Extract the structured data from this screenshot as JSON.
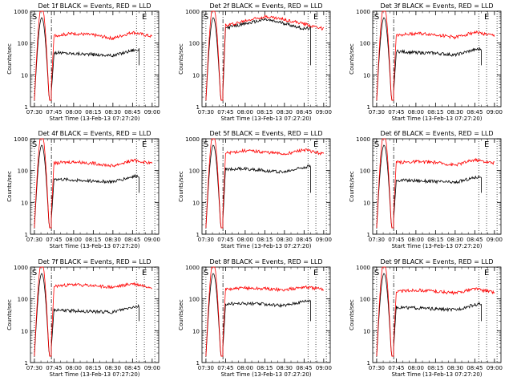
{
  "chart_data": [
    {
      "type": "line",
      "title": "Det 1f BLACK = Events, RED = LLD",
      "xlabel": "Start Time (13-Feb-13 07:27:20)",
      "ylabel": "Counts/sec",
      "yscale": "log",
      "ylim": [
        1,
        1000
      ],
      "xlim": [
        "07:27",
        "09:05"
      ],
      "x_ticks": [
        "07:30",
        "07:45",
        "08:00",
        "08:15",
        "08:30",
        "08:45",
        "09:00"
      ],
      "y_ticks": [
        "1",
        "10",
        "100",
        "1000"
      ],
      "markers": [
        {
          "label": "S",
          "time": "07:30"
        },
        {
          "label": "E",
          "time": "08:54"
        }
      ],
      "vlines": [
        {
          "time": "07:43",
          "style": "dash-dot"
        },
        {
          "time": "08:48",
          "style": "dotted"
        },
        {
          "time": "09:02",
          "style": "dotted"
        }
      ],
      "series": [
        {
          "color": "#000000",
          "values": [
            {
              "x": "07:45",
              "y": 50
            },
            {
              "x": "08:00",
              "y": 47
            },
            {
              "x": "08:15",
              "y": 44
            },
            {
              "x": "08:30",
              "y": 40
            },
            {
              "x": "08:45",
              "y": 60
            },
            {
              "x": "08:50",
              "y": 62
            }
          ]
        },
        {
          "color": "#ff0000",
          "values": [
            {
              "x": "07:45",
              "y": 170
            },
            {
              "x": "08:00",
              "y": 200
            },
            {
              "x": "08:15",
              "y": 180
            },
            {
              "x": "08:30",
              "y": 140
            },
            {
              "x": "08:45",
              "y": 220
            },
            {
              "x": "09:00",
              "y": 160
            }
          ]
        }
      ]
    },
    {
      "type": "line",
      "title": "Det 2f BLACK = Events, RED = LLD",
      "xlabel": "Start Time (13-Feb-13 07:27:20)",
      "ylabel": "Counts/sec",
      "yscale": "log",
      "ylim": [
        1,
        1000
      ],
      "xlim": [
        "07:27",
        "09:05"
      ],
      "x_ticks": [
        "07:30",
        "07:45",
        "08:00",
        "08:15",
        "08:30",
        "08:45",
        "09:00"
      ],
      "y_ticks": [
        "1",
        "10",
        "100",
        "1000"
      ],
      "markers": [
        {
          "label": "S",
          "time": "07:30"
        },
        {
          "label": "E",
          "time": "08:54"
        }
      ],
      "vlines": [
        {
          "time": "07:43",
          "style": "dash-dot"
        },
        {
          "time": "08:48",
          "style": "dotted"
        },
        {
          "time": "09:02",
          "style": "dotted"
        }
      ],
      "series": [
        {
          "color": "#000000",
          "values": [
            {
              "x": "07:45",
              "y": 300
            },
            {
              "x": "08:00",
              "y": 400
            },
            {
              "x": "08:15",
              "y": 550
            },
            {
              "x": "08:30",
              "y": 420
            },
            {
              "x": "08:45",
              "y": 280
            },
            {
              "x": "08:50",
              "y": 300
            }
          ]
        },
        {
          "color": "#ff0000",
          "values": [
            {
              "x": "07:45",
              "y": 350
            },
            {
              "x": "08:00",
              "y": 500
            },
            {
              "x": "08:15",
              "y": 700
            },
            {
              "x": "08:30",
              "y": 550
            },
            {
              "x": "08:45",
              "y": 400
            },
            {
              "x": "09:00",
              "y": 280
            }
          ]
        }
      ]
    },
    {
      "type": "line",
      "title": "Det 3f BLACK = Events, RED = LLD",
      "xlabel": "Start Time (13-Feb-13 07:27:20)",
      "ylabel": "Counts/sec",
      "yscale": "log",
      "ylim": [
        1,
        1000
      ],
      "xlim": [
        "07:27",
        "09:05"
      ],
      "x_ticks": [
        "07:30",
        "07:45",
        "08:00",
        "08:15",
        "08:30",
        "08:45",
        "09:00"
      ],
      "y_ticks": [
        "1",
        "10",
        "100",
        "1000"
      ],
      "markers": [
        {
          "label": "S",
          "time": "07:30"
        },
        {
          "label": "E",
          "time": "08:54"
        }
      ],
      "vlines": [
        {
          "time": "07:43",
          "style": "dash-dot"
        },
        {
          "time": "08:48",
          "style": "dotted"
        },
        {
          "time": "09:02",
          "style": "dotted"
        }
      ],
      "series": [
        {
          "color": "#000000",
          "values": [
            {
              "x": "07:45",
              "y": 55
            },
            {
              "x": "08:00",
              "y": 50
            },
            {
              "x": "08:15",
              "y": 48
            },
            {
              "x": "08:30",
              "y": 42
            },
            {
              "x": "08:45",
              "y": 62
            },
            {
              "x": "08:50",
              "y": 65
            }
          ]
        },
        {
          "color": "#ff0000",
          "values": [
            {
              "x": "07:45",
              "y": 180
            },
            {
              "x": "08:00",
              "y": 200
            },
            {
              "x": "08:15",
              "y": 185
            },
            {
              "x": "08:30",
              "y": 150
            },
            {
              "x": "08:45",
              "y": 220
            },
            {
              "x": "09:00",
              "y": 170
            }
          ]
        }
      ]
    },
    {
      "type": "line",
      "title": "Det 4f BLACK = Events, RED = LLD",
      "xlabel": "Start Time (13-Feb-13 07:27:20)",
      "ylabel": "Counts/sec",
      "yscale": "log",
      "ylim": [
        1,
        1000
      ],
      "xlim": [
        "07:27",
        "09:05"
      ],
      "x_ticks": [
        "07:30",
        "07:45",
        "08:00",
        "08:15",
        "08:30",
        "08:45",
        "09:00"
      ],
      "y_ticks": [
        "1",
        "10",
        "100",
        "1000"
      ],
      "markers": [
        {
          "label": "S",
          "time": "07:30"
        },
        {
          "label": "E",
          "time": "08:54"
        }
      ],
      "vlines": [
        {
          "time": "07:43",
          "style": "dash-dot"
        },
        {
          "time": "08:48",
          "style": "dotted"
        },
        {
          "time": "09:02",
          "style": "dotted"
        }
      ],
      "series": [
        {
          "color": "#000000",
          "values": [
            {
              "x": "07:45",
              "y": 55
            },
            {
              "x": "08:00",
              "y": 50
            },
            {
              "x": "08:15",
              "y": 47
            },
            {
              "x": "08:30",
              "y": 45
            },
            {
              "x": "08:45",
              "y": 65
            },
            {
              "x": "08:50",
              "y": 68
            }
          ]
        },
        {
          "color": "#ff0000",
          "values": [
            {
              "x": "07:45",
              "y": 170
            },
            {
              "x": "08:00",
              "y": 190
            },
            {
              "x": "08:15",
              "y": 170
            },
            {
              "x": "08:30",
              "y": 140
            },
            {
              "x": "08:45",
              "y": 210
            },
            {
              "x": "09:00",
              "y": 170
            }
          ]
        }
      ]
    },
    {
      "type": "line",
      "title": "Det 5f BLACK = Events, RED = LLD",
      "xlabel": "Start Time (13-Feb-13 07:27:20)",
      "ylabel": "Counts/sec",
      "yscale": "log",
      "ylim": [
        1,
        1000
      ],
      "xlim": [
        "07:27",
        "09:05"
      ],
      "x_ticks": [
        "07:30",
        "07:45",
        "08:00",
        "08:15",
        "08:30",
        "08:45",
        "09:00"
      ],
      "y_ticks": [
        "1",
        "10",
        "100",
        "1000"
      ],
      "markers": [
        {
          "label": "S",
          "time": "07:30"
        },
        {
          "label": "E",
          "time": "08:54"
        }
      ],
      "vlines": [
        {
          "time": "07:43",
          "style": "dash-dot"
        },
        {
          "time": "08:48",
          "style": "dotted"
        },
        {
          "time": "09:02",
          "style": "dotted"
        }
      ],
      "series": [
        {
          "color": "#000000",
          "values": [
            {
              "x": "07:45",
              "y": 110
            },
            {
              "x": "08:00",
              "y": 115
            },
            {
              "x": "08:15",
              "y": 100
            },
            {
              "x": "08:30",
              "y": 90
            },
            {
              "x": "08:45",
              "y": 130
            },
            {
              "x": "08:50",
              "y": 140
            }
          ]
        },
        {
          "color": "#ff0000",
          "values": [
            {
              "x": "07:45",
              "y": 350
            },
            {
              "x": "08:00",
              "y": 420
            },
            {
              "x": "08:15",
              "y": 380
            },
            {
              "x": "08:30",
              "y": 330
            },
            {
              "x": "08:45",
              "y": 450
            },
            {
              "x": "09:00",
              "y": 330
            }
          ]
        }
      ]
    },
    {
      "type": "line",
      "title": "Det 6f BLACK = Events, RED = LLD",
      "xlabel": "Start Time (13-Feb-13 07:27:20)",
      "ylabel": "Counts/sec",
      "yscale": "log",
      "ylim": [
        1,
        1000
      ],
      "xlim": [
        "07:27",
        "09:05"
      ],
      "x_ticks": [
        "07:30",
        "07:45",
        "08:00",
        "08:15",
        "08:30",
        "08:45",
        "09:00"
      ],
      "y_ticks": [
        "1",
        "10",
        "100",
        "1000"
      ],
      "markers": [
        {
          "label": "S",
          "time": "07:30"
        },
        {
          "label": "E",
          "time": "08:54"
        }
      ],
      "vlines": [
        {
          "time": "07:43",
          "style": "dash-dot"
        },
        {
          "time": "08:48",
          "style": "dotted"
        },
        {
          "time": "09:02",
          "style": "dotted"
        }
      ],
      "series": [
        {
          "color": "#000000",
          "values": [
            {
              "x": "07:45",
              "y": 50
            },
            {
              "x": "08:00",
              "y": 48
            },
            {
              "x": "08:15",
              "y": 45
            },
            {
              "x": "08:30",
              "y": 42
            },
            {
              "x": "08:45",
              "y": 60
            },
            {
              "x": "08:50",
              "y": 65
            }
          ]
        },
        {
          "color": "#ff0000",
          "values": [
            {
              "x": "07:45",
              "y": 180
            },
            {
              "x": "08:00",
              "y": 190
            },
            {
              "x": "08:15",
              "y": 180
            },
            {
              "x": "08:30",
              "y": 150
            },
            {
              "x": "08:45",
              "y": 220
            },
            {
              "x": "09:00",
              "y": 170
            }
          ]
        }
      ]
    },
    {
      "type": "line",
      "title": "Det 7f BLACK = Events, RED = LLD",
      "xlabel": "Start Time (13-Feb-13 07:27:20)",
      "ylabel": "Counts/sec",
      "yscale": "log",
      "ylim": [
        1,
        1000
      ],
      "xlim": [
        "07:27",
        "09:05"
      ],
      "x_ticks": [
        "07:30",
        "07:45",
        "08:00",
        "08:15",
        "08:30",
        "08:45",
        "09:00"
      ],
      "y_ticks": [
        "1",
        "10",
        "100",
        "1000"
      ],
      "markers": [
        {
          "label": "S",
          "time": "07:30"
        },
        {
          "label": "E",
          "time": "08:54"
        }
      ],
      "vlines": [
        {
          "time": "07:43",
          "style": "dash-dot"
        },
        {
          "time": "08:48",
          "style": "dotted"
        },
        {
          "time": "09:02",
          "style": "dotted"
        }
      ],
      "series": [
        {
          "color": "#000000",
          "values": [
            {
              "x": "07:45",
              "y": 45
            },
            {
              "x": "08:00",
              "y": 42
            },
            {
              "x": "08:15",
              "y": 40
            },
            {
              "x": "08:30",
              "y": 38
            },
            {
              "x": "08:45",
              "y": 55
            },
            {
              "x": "08:50",
              "y": 58
            }
          ]
        },
        {
          "color": "#ff0000",
          "values": [
            {
              "x": "07:45",
              "y": 250
            },
            {
              "x": "08:00",
              "y": 280
            },
            {
              "x": "08:15",
              "y": 260
            },
            {
              "x": "08:30",
              "y": 230
            },
            {
              "x": "08:45",
              "y": 300
            },
            {
              "x": "09:00",
              "y": 230
            }
          ]
        }
      ]
    },
    {
      "type": "line",
      "title": "Det 8f BLACK = Events, RED = LLD",
      "xlabel": "Start Time (13-Feb-13 07:27:20)",
      "ylabel": "Counts/sec",
      "yscale": "log",
      "ylim": [
        1,
        1000
      ],
      "xlim": [
        "07:27",
        "09:05"
      ],
      "x_ticks": [
        "07:30",
        "07:45",
        "08:00",
        "08:15",
        "08:30",
        "08:45",
        "09:00"
      ],
      "y_ticks": [
        "1",
        "10",
        "100",
        "1000"
      ],
      "markers": [
        {
          "label": "S",
          "time": "07:30"
        },
        {
          "label": "E",
          "time": "08:54"
        }
      ],
      "vlines": [
        {
          "time": "07:43",
          "style": "dash-dot"
        },
        {
          "time": "08:48",
          "style": "dotted"
        },
        {
          "time": "09:02",
          "style": "dotted"
        }
      ],
      "series": [
        {
          "color": "#000000",
          "values": [
            {
              "x": "07:45",
              "y": 70
            },
            {
              "x": "08:00",
              "y": 72
            },
            {
              "x": "08:15",
              "y": 68
            },
            {
              "x": "08:30",
              "y": 62
            },
            {
              "x": "08:45",
              "y": 85
            },
            {
              "x": "08:50",
              "y": 90
            }
          ]
        },
        {
          "color": "#ff0000",
          "values": [
            {
              "x": "07:45",
              "y": 200
            },
            {
              "x": "08:00",
              "y": 220
            },
            {
              "x": "08:15",
              "y": 210
            },
            {
              "x": "08:30",
              "y": 190
            },
            {
              "x": "08:45",
              "y": 240
            },
            {
              "x": "09:00",
              "y": 200
            }
          ]
        }
      ]
    },
    {
      "type": "line",
      "title": "Det 9f BLACK = Events, RED = LLD",
      "xlabel": "Start Time (13-Feb-13 07:27:20)",
      "ylabel": "Counts/sec",
      "yscale": "log",
      "ylim": [
        1,
        1000
      ],
      "xlim": [
        "07:27",
        "09:05"
      ],
      "x_ticks": [
        "07:30",
        "07:45",
        "08:00",
        "08:15",
        "08:30",
        "08:45",
        "09:00"
      ],
      "y_ticks": [
        "1",
        "10",
        "100",
        "1000"
      ],
      "markers": [
        {
          "label": "S",
          "time": "07:30"
        },
        {
          "label": "E",
          "time": "08:54"
        }
      ],
      "vlines": [
        {
          "time": "07:43",
          "style": "dash-dot"
        },
        {
          "time": "08:48",
          "style": "dotted"
        },
        {
          "time": "09:02",
          "style": "dotted"
        }
      ],
      "series": [
        {
          "color": "#000000",
          "values": [
            {
              "x": "07:45",
              "y": 55
            },
            {
              "x": "08:00",
              "y": 52
            },
            {
              "x": "08:15",
              "y": 48
            },
            {
              "x": "08:30",
              "y": 45
            },
            {
              "x": "08:45",
              "y": 65
            },
            {
              "x": "08:50",
              "y": 70
            }
          ]
        },
        {
          "color": "#ff0000",
          "values": [
            {
              "x": "07:45",
              "y": 170
            },
            {
              "x": "08:00",
              "y": 190
            },
            {
              "x": "08:15",
              "y": 175
            },
            {
              "x": "08:30",
              "y": 150
            },
            {
              "x": "08:45",
              "y": 210
            },
            {
              "x": "09:00",
              "y": 160
            }
          ]
        }
      ]
    }
  ]
}
